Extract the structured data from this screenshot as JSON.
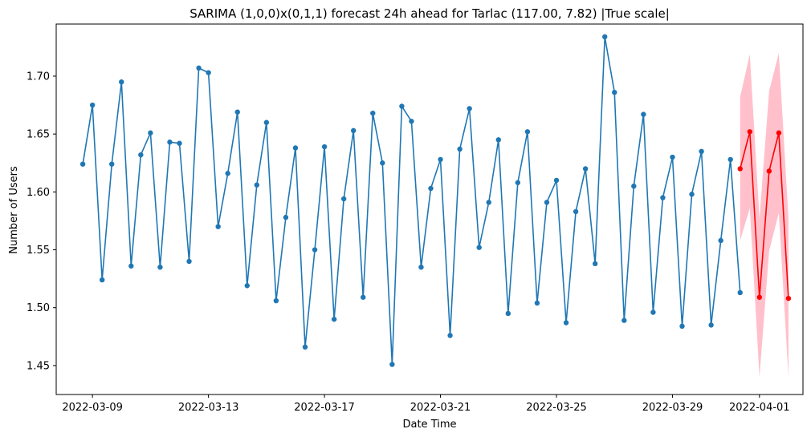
{
  "chart_data": {
    "type": "line",
    "title": "SARIMA (1,0,0)x(0,1,1) forecast 24h ahead for Tarlac (117.00, 7.82) |True scale|",
    "xlabel": "Date Time",
    "ylabel": "Number of Users",
    "x_axis_kind": "date",
    "x_range": [
      "2022-03-07T18:00",
      "2022-04-02T12:00"
    ],
    "ylim": [
      1.425,
      1.745
    ],
    "x_tick_labels": [
      "2022-03-09",
      "2022-03-13",
      "2022-03-17",
      "2022-03-21",
      "2022-03-25",
      "2022-03-29",
      "2022-04-01"
    ],
    "y_tick_labels": [
      "1.45",
      "1.50",
      "1.55",
      "1.60",
      "1.65",
      "1.70"
    ],
    "grid": false,
    "legend": "none",
    "colors": {
      "observed": "#1f77b4",
      "forecast": "#ff0000",
      "interval": "#ffc0cb"
    },
    "series": [
      {
        "role": "observed",
        "points": [
          [
            "2022-03-08T16:00",
            1.624
          ],
          [
            "2022-03-09T00:00",
            1.675
          ],
          [
            "2022-03-09T08:00",
            1.524
          ],
          [
            "2022-03-09T16:00",
            1.624
          ],
          [
            "2022-03-10T00:00",
            1.695
          ],
          [
            "2022-03-10T08:00",
            1.536
          ],
          [
            "2022-03-10T16:00",
            1.632
          ],
          [
            "2022-03-11T00:00",
            1.651
          ],
          [
            "2022-03-11T08:00",
            1.535
          ],
          [
            "2022-03-11T16:00",
            1.643
          ],
          [
            "2022-03-12T00:00",
            1.642
          ],
          [
            "2022-03-12T08:00",
            1.54
          ],
          [
            "2022-03-12T16:00",
            1.707
          ],
          [
            "2022-03-13T00:00",
            1.703
          ],
          [
            "2022-03-13T08:00",
            1.57
          ],
          [
            "2022-03-13T16:00",
            1.616
          ],
          [
            "2022-03-14T00:00",
            1.669
          ],
          [
            "2022-03-14T08:00",
            1.519
          ],
          [
            "2022-03-14T16:00",
            1.606
          ],
          [
            "2022-03-15T00:00",
            1.66
          ],
          [
            "2022-03-15T08:00",
            1.506
          ],
          [
            "2022-03-15T16:00",
            1.578
          ],
          [
            "2022-03-16T00:00",
            1.638
          ],
          [
            "2022-03-16T08:00",
            1.466
          ],
          [
            "2022-03-16T16:00",
            1.55
          ],
          [
            "2022-03-17T00:00",
            1.639
          ],
          [
            "2022-03-17T08:00",
            1.49
          ],
          [
            "2022-03-17T16:00",
            1.594
          ],
          [
            "2022-03-18T00:00",
            1.653
          ],
          [
            "2022-03-18T08:00",
            1.509
          ],
          [
            "2022-03-18T16:00",
            1.668
          ],
          [
            "2022-03-19T00:00",
            1.625
          ],
          [
            "2022-03-19T08:00",
            1.451
          ],
          [
            "2022-03-19T16:00",
            1.674
          ],
          [
            "2022-03-20T00:00",
            1.661
          ],
          [
            "2022-03-20T08:00",
            1.535
          ],
          [
            "2022-03-20T16:00",
            1.603
          ],
          [
            "2022-03-21T00:00",
            1.628
          ],
          [
            "2022-03-21T08:00",
            1.476
          ],
          [
            "2022-03-21T16:00",
            1.637
          ],
          [
            "2022-03-22T00:00",
            1.672
          ],
          [
            "2022-03-22T08:00",
            1.552
          ],
          [
            "2022-03-22T16:00",
            1.591
          ],
          [
            "2022-03-23T00:00",
            1.645
          ],
          [
            "2022-03-23T08:00",
            1.495
          ],
          [
            "2022-03-23T16:00",
            1.608
          ],
          [
            "2022-03-24T00:00",
            1.652
          ],
          [
            "2022-03-24T08:00",
            1.504
          ],
          [
            "2022-03-24T16:00",
            1.591
          ],
          [
            "2022-03-25T00:00",
            1.61
          ],
          [
            "2022-03-25T08:00",
            1.487
          ],
          [
            "2022-03-25T16:00",
            1.583
          ],
          [
            "2022-03-26T00:00",
            1.62
          ],
          [
            "2022-03-26T08:00",
            1.538
          ],
          [
            "2022-03-26T16:00",
            1.734
          ],
          [
            "2022-03-27T00:00",
            1.686
          ],
          [
            "2022-03-27T08:00",
            1.489
          ],
          [
            "2022-03-27T16:00",
            1.605
          ],
          [
            "2022-03-28T00:00",
            1.667
          ],
          [
            "2022-03-28T08:00",
            1.496
          ],
          [
            "2022-03-28T16:00",
            1.595
          ],
          [
            "2022-03-29T00:00",
            1.63
          ],
          [
            "2022-03-29T08:00",
            1.484
          ],
          [
            "2022-03-29T16:00",
            1.598
          ],
          [
            "2022-03-30T00:00",
            1.635
          ],
          [
            "2022-03-30T08:00",
            1.485
          ],
          [
            "2022-03-30T16:00",
            1.558
          ],
          [
            "2022-03-31T00:00",
            1.628
          ],
          [
            "2022-03-31T08:00",
            1.513
          ]
        ]
      },
      {
        "role": "forecast",
        "points": [
          [
            "2022-03-31T08:00",
            1.62
          ],
          [
            "2022-03-31T16:00",
            1.652
          ],
          [
            "2022-04-01T00:00",
            1.509
          ],
          [
            "2022-04-01T08:00",
            1.618
          ],
          [
            "2022-04-01T16:00",
            1.651
          ],
          [
            "2022-04-02T00:00",
            1.508
          ]
        ]
      }
    ],
    "confidence_interval": {
      "x": [
        "2022-03-31T08:00",
        "2022-03-31T16:00",
        "2022-04-01T00:00",
        "2022-04-01T08:00",
        "2022-04-01T16:00",
        "2022-04-02T00:00"
      ],
      "lower": [
        1.558,
        1.586,
        1.44,
        1.549,
        1.582,
        1.44
      ],
      "upper": [
        1.682,
        1.719,
        1.577,
        1.687,
        1.72,
        1.577
      ]
    }
  }
}
